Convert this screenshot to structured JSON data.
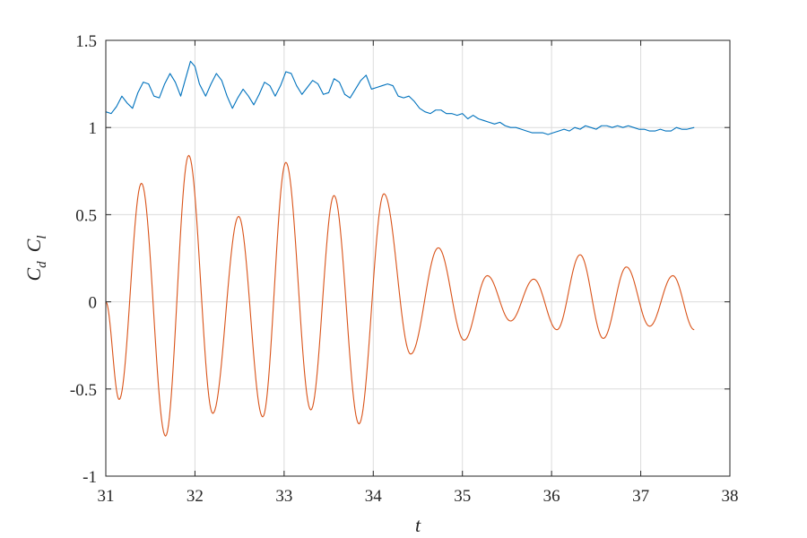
{
  "chart_data": {
    "type": "line",
    "title": "",
    "xlabel": "t",
    "ylabel": {
      "parts": [
        {
          "base": "C",
          "sub": "d"
        },
        {
          "base": "C",
          "sub": "l"
        }
      ]
    },
    "xlim": [
      31,
      38
    ],
    "ylim": [
      -1,
      1.5
    ],
    "xticks": [
      31,
      32,
      33,
      34,
      35,
      36,
      37,
      38
    ],
    "yticks": [
      -1,
      -0.5,
      0,
      0.5,
      1,
      1.5
    ],
    "xtick_labels": [
      "31",
      "32",
      "33",
      "34",
      "35",
      "36",
      "37",
      "38"
    ],
    "ytick_labels": [
      "-1",
      "-0.5",
      "0",
      "0.5",
      "1",
      "1.5"
    ],
    "grid": true,
    "series": [
      {
        "color": "#0072BD",
        "points": [
          [
            31.0,
            1.09
          ],
          [
            31.06,
            1.08
          ],
          [
            31.12,
            1.12
          ],
          [
            31.18,
            1.18
          ],
          [
            31.24,
            1.14
          ],
          [
            31.3,
            1.11
          ],
          [
            31.36,
            1.2
          ],
          [
            31.42,
            1.26
          ],
          [
            31.48,
            1.25
          ],
          [
            31.54,
            1.18
          ],
          [
            31.6,
            1.17
          ],
          [
            31.66,
            1.25
          ],
          [
            31.72,
            1.31
          ],
          [
            31.78,
            1.26
          ],
          [
            31.84,
            1.18
          ],
          [
            31.9,
            1.29
          ],
          [
            31.95,
            1.38
          ],
          [
            32.0,
            1.35
          ],
          [
            32.05,
            1.25
          ],
          [
            32.12,
            1.18
          ],
          [
            32.18,
            1.25
          ],
          [
            32.24,
            1.31
          ],
          [
            32.3,
            1.27
          ],
          [
            32.36,
            1.18
          ],
          [
            32.42,
            1.11
          ],
          [
            32.48,
            1.17
          ],
          [
            32.54,
            1.22
          ],
          [
            32.6,
            1.18
          ],
          [
            32.66,
            1.13
          ],
          [
            32.72,
            1.19
          ],
          [
            32.78,
            1.26
          ],
          [
            32.84,
            1.24
          ],
          [
            32.9,
            1.18
          ],
          [
            32.96,
            1.24
          ],
          [
            33.02,
            1.32
          ],
          [
            33.08,
            1.31
          ],
          [
            33.14,
            1.24
          ],
          [
            33.2,
            1.19
          ],
          [
            33.26,
            1.23
          ],
          [
            33.32,
            1.27
          ],
          [
            33.38,
            1.25
          ],
          [
            33.44,
            1.19
          ],
          [
            33.5,
            1.2
          ],
          [
            33.56,
            1.28
          ],
          [
            33.62,
            1.26
          ],
          [
            33.68,
            1.19
          ],
          [
            33.74,
            1.17
          ],
          [
            33.8,
            1.22
          ],
          [
            33.86,
            1.27
          ],
          [
            33.92,
            1.3
          ],
          [
            33.98,
            1.22
          ],
          [
            34.04,
            1.23
          ],
          [
            34.1,
            1.24
          ],
          [
            34.16,
            1.25
          ],
          [
            34.22,
            1.24
          ],
          [
            34.28,
            1.18
          ],
          [
            34.34,
            1.17
          ],
          [
            34.4,
            1.18
          ],
          [
            34.46,
            1.15
          ],
          [
            34.52,
            1.11
          ],
          [
            34.58,
            1.09
          ],
          [
            34.64,
            1.08
          ],
          [
            34.7,
            1.1
          ],
          [
            34.76,
            1.1
          ],
          [
            34.82,
            1.08
          ],
          [
            34.88,
            1.08
          ],
          [
            34.94,
            1.07
          ],
          [
            35.0,
            1.08
          ],
          [
            35.06,
            1.05
          ],
          [
            35.12,
            1.07
          ],
          [
            35.18,
            1.05
          ],
          [
            35.24,
            1.04
          ],
          [
            35.3,
            1.03
          ],
          [
            35.36,
            1.02
          ],
          [
            35.42,
            1.03
          ],
          [
            35.48,
            1.01
          ],
          [
            35.54,
            1.0
          ],
          [
            35.6,
            1.0
          ],
          [
            35.66,
            0.99
          ],
          [
            35.72,
            0.98
          ],
          [
            35.78,
            0.97
          ],
          [
            35.84,
            0.97
          ],
          [
            35.9,
            0.97
          ],
          [
            35.96,
            0.96
          ],
          [
            36.02,
            0.97
          ],
          [
            36.08,
            0.98
          ],
          [
            36.14,
            0.99
          ],
          [
            36.2,
            0.98
          ],
          [
            36.26,
            1.0
          ],
          [
            36.32,
            0.99
          ],
          [
            36.38,
            1.01
          ],
          [
            36.44,
            1.0
          ],
          [
            36.5,
            0.99
          ],
          [
            36.56,
            1.01
          ],
          [
            36.62,
            1.01
          ],
          [
            36.68,
            1.0
          ],
          [
            36.74,
            1.01
          ],
          [
            36.8,
            1.0
          ],
          [
            36.86,
            1.01
          ],
          [
            36.92,
            1.0
          ],
          [
            36.98,
            0.99
          ],
          [
            37.04,
            0.99
          ],
          [
            37.1,
            0.98
          ],
          [
            37.16,
            0.98
          ],
          [
            37.22,
            0.99
          ],
          [
            37.28,
            0.98
          ],
          [
            37.34,
            0.98
          ],
          [
            37.4,
            1.0
          ],
          [
            37.46,
            0.99
          ],
          [
            37.52,
            0.99
          ],
          [
            37.6,
            1.0
          ]
        ]
      },
      {
        "color": "#D95319",
        "extrema": [
          [
            31.0,
            0.0
          ],
          [
            31.15,
            -0.56
          ],
          [
            31.4,
            0.68
          ],
          [
            31.67,
            -0.77
          ],
          [
            31.93,
            0.84
          ],
          [
            32.2,
            -0.64
          ],
          [
            32.49,
            0.49
          ],
          [
            32.76,
            -0.66
          ],
          [
            33.02,
            0.8
          ],
          [
            33.3,
            -0.62
          ],
          [
            33.56,
            0.61
          ],
          [
            33.84,
            -0.7
          ],
          [
            34.12,
            0.62
          ],
          [
            34.42,
            -0.3
          ],
          [
            34.73,
            0.31
          ],
          [
            35.02,
            -0.22
          ],
          [
            35.28,
            0.15
          ],
          [
            35.54,
            -0.11
          ],
          [
            35.8,
            0.13
          ],
          [
            36.06,
            -0.16
          ],
          [
            36.32,
            0.27
          ],
          [
            36.58,
            -0.21
          ],
          [
            36.84,
            0.2
          ],
          [
            37.1,
            -0.14
          ],
          [
            37.36,
            0.15
          ],
          [
            37.6,
            -0.16
          ]
        ]
      }
    ]
  }
}
